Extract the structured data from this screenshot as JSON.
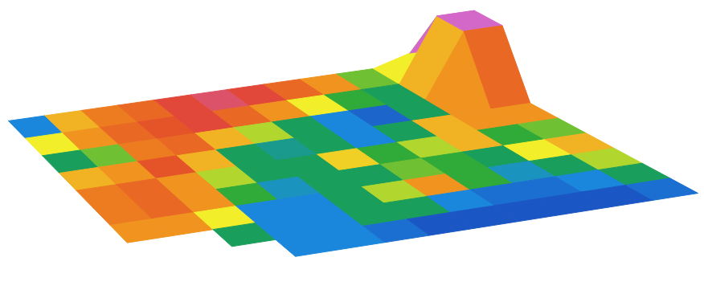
{
  "chart_data": {
    "type": "surface",
    "tick_labels": false,
    "zlim": [
      0,
      10
    ],
    "color": [
      "#1c3fb8",
      "#1a8fe0",
      "#1aa23a",
      "#f2ee2a",
      "#f08a1e",
      "#e2452a",
      "#d468c8"
    ],
    "cells": [
      [
        1.5,
        6,
        7,
        7.5,
        8.5,
        9,
        8.5,
        7.5,
        6.5,
        4,
        5,
        11
      ],
      [
        5,
        6.5,
        7.5,
        8,
        8.5,
        7.5,
        6.5,
        5,
        3.5,
        3,
        6,
        16
      ],
      [
        3,
        4,
        7,
        7.5,
        6,
        4.5,
        3,
        1.5,
        0.8,
        3,
        6.5,
        7.5
      ],
      [
        6,
        6.5,
        8,
        6,
        3,
        2.5,
        3,
        1.5,
        3,
        6,
        6.5,
        6.5
      ],
      [
        7,
        7.5,
        6.5,
        4.5,
        3,
        3,
        5.5,
        3.5,
        4.5,
        6,
        3.5,
        4
      ],
      [
        7,
        7.5,
        6.5,
        3.5,
        2,
        3,
        3,
        4,
        3.5,
        3,
        5,
        6
      ],
      [
        6.5,
        6.5,
        5,
        1.5,
        1.5,
        3,
        4.5,
        6.5,
        3.5,
        2,
        3,
        4.5
      ],
      [
        null,
        null,
        3,
        1.5,
        1.5,
        3,
        3,
        1.5,
        1,
        1,
        1.5,
        3
      ],
      [
        null,
        null,
        null,
        1.5,
        1.5,
        1,
        0.5,
        0.5,
        0.5,
        0.5,
        0.5,
        1
      ]
    ]
  }
}
